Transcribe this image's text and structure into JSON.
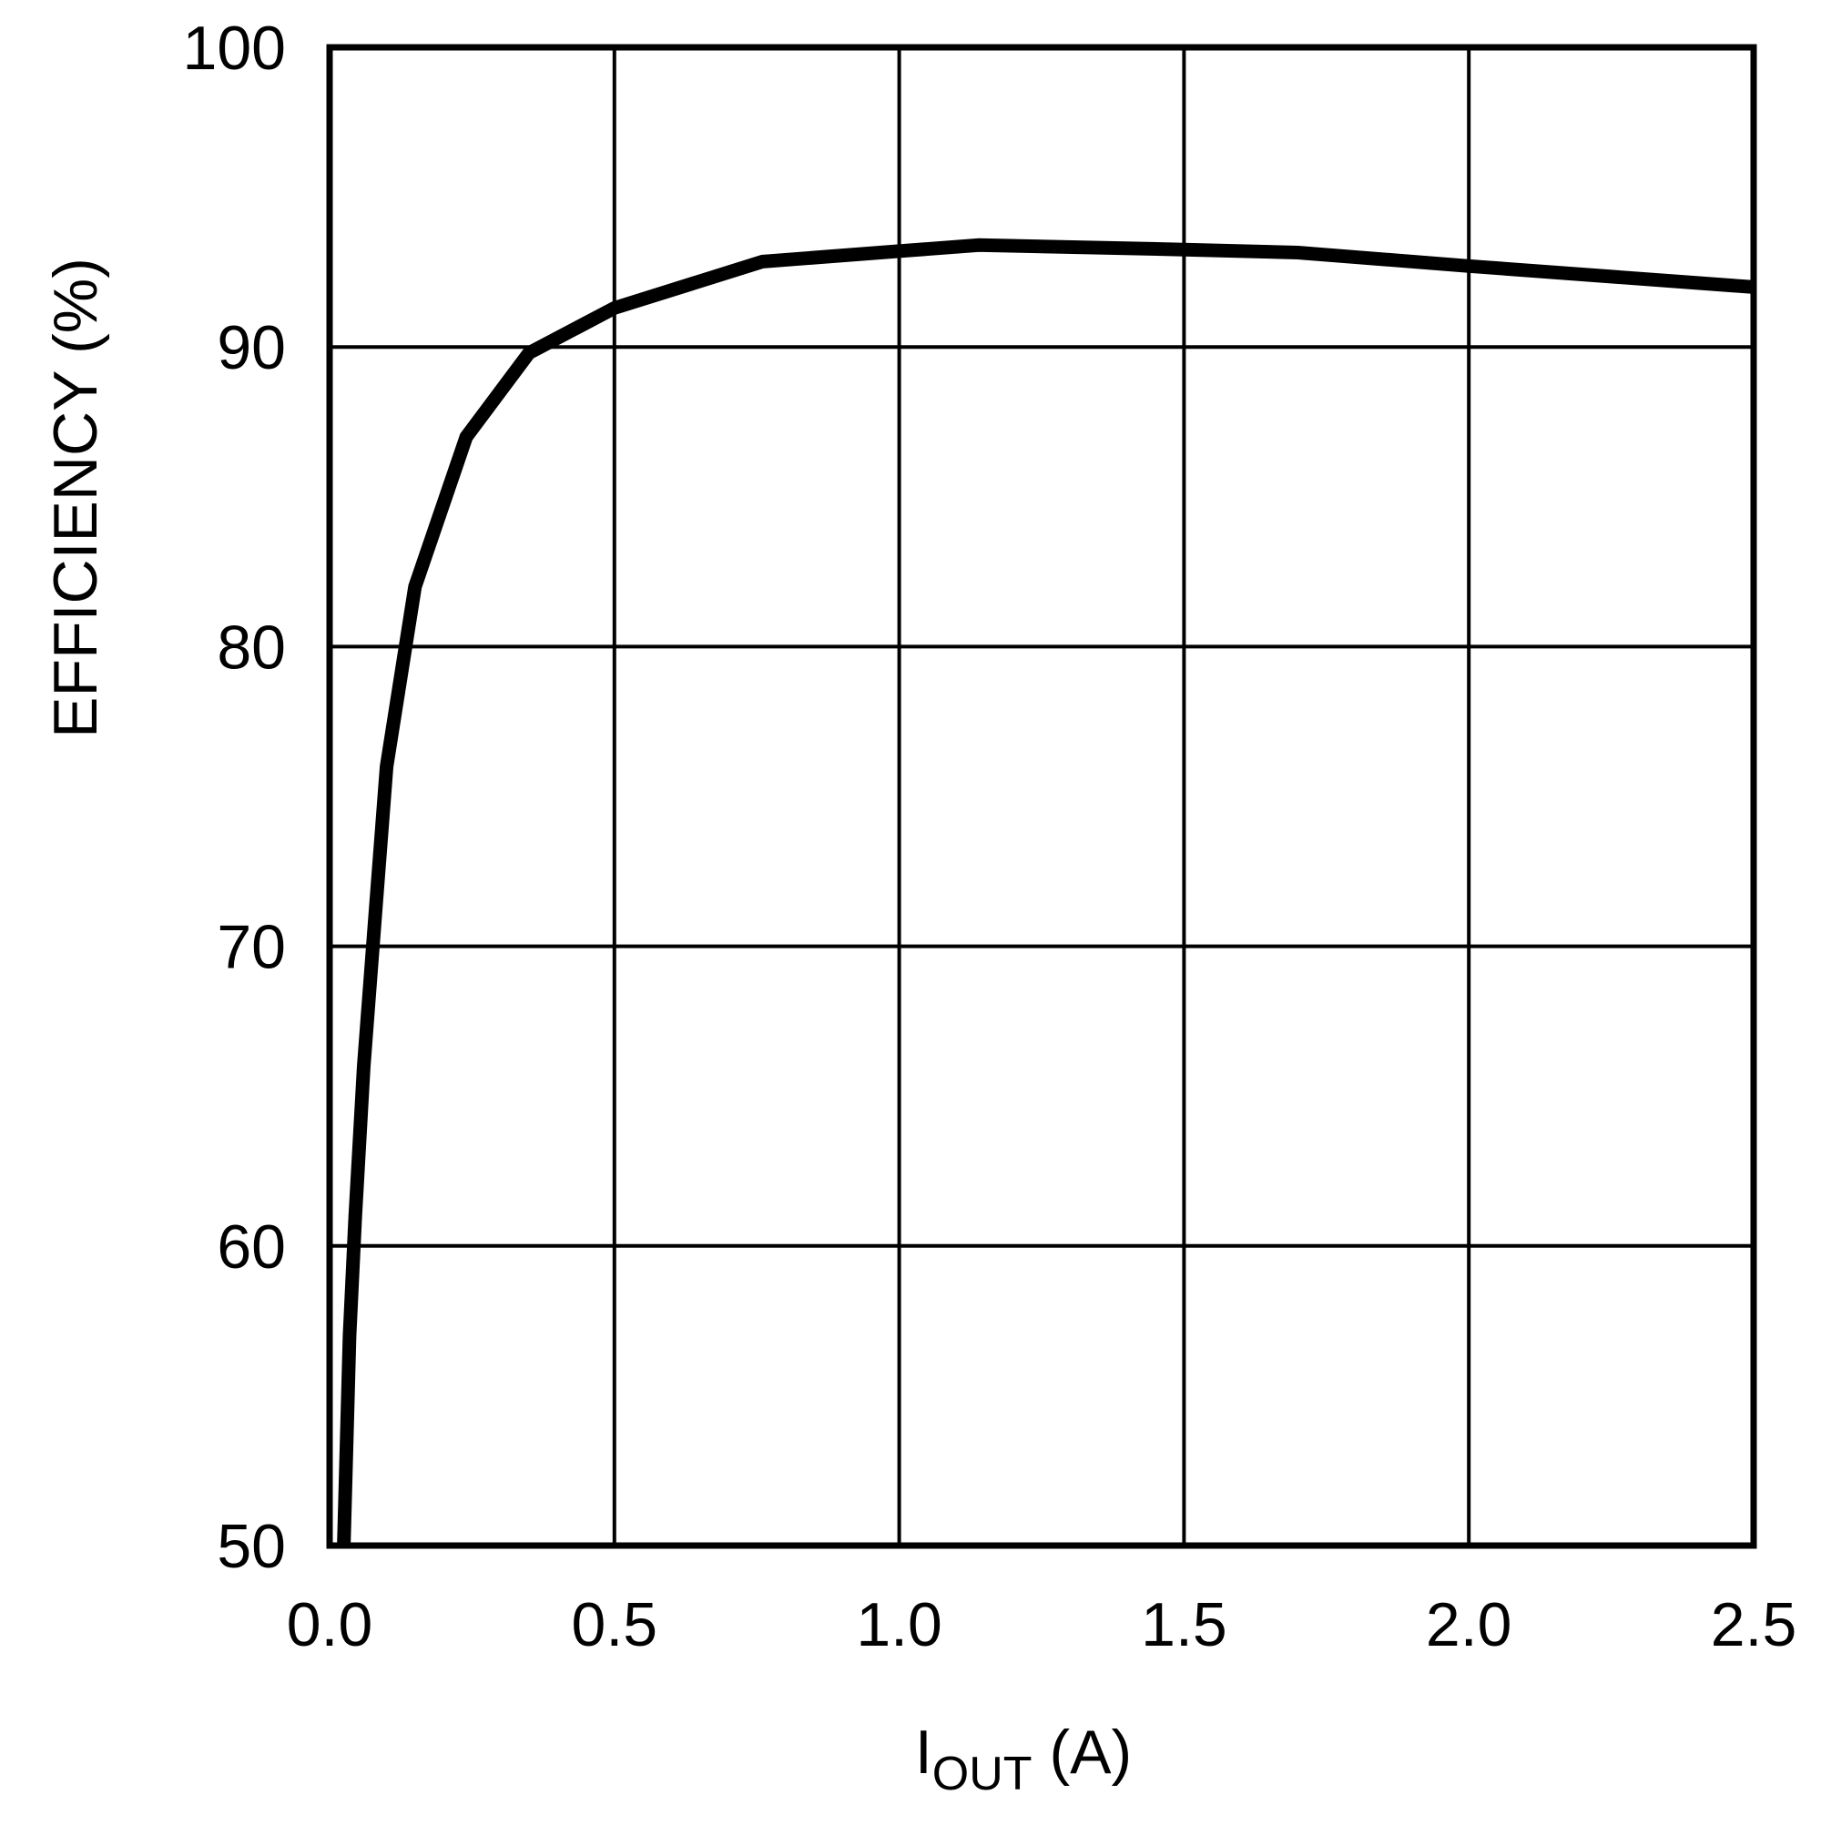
{
  "chart_data": {
    "type": "line",
    "title": "",
    "xlabel": "IOUT (A)",
    "xlabel_main": "I",
    "xlabel_subscript": "OUT",
    "xlabel_unit": " (A)",
    "ylabel": "EFFICIENCY (%)",
    "xlim": [
      0.0,
      2.5
    ],
    "ylim": [
      50,
      100
    ],
    "x_ticks": [
      0.0,
      0.5,
      1.0,
      1.5,
      2.0,
      2.5
    ],
    "x_tick_labels": [
      "0.0",
      "0.5",
      "1.0",
      "1.5",
      "2.0",
      "2.5"
    ],
    "y_ticks": [
      50,
      60,
      70,
      80,
      90,
      100
    ],
    "y_tick_labels": [
      "50",
      "60",
      "70",
      "80",
      "90",
      "100"
    ],
    "grid": true,
    "legend": null,
    "series": [
      {
        "name": "Efficiency",
        "color": "#000000",
        "x": [
          0.025,
          0.035,
          0.045,
          0.06,
          0.08,
          0.1,
          0.15,
          0.24,
          0.35,
          0.5,
          0.76,
          1.0,
          1.14,
          1.5,
          1.7,
          2.0,
          2.5
        ],
        "y": [
          50.0,
          57.0,
          61.0,
          66.0,
          71.0,
          76.0,
          82.0,
          87.0,
          89.8,
          91.3,
          92.85,
          93.2,
          93.4,
          93.25,
          93.15,
          92.7,
          92.0
        ]
      }
    ]
  },
  "colors": {
    "background": "#ffffff",
    "ink": "#000000"
  }
}
